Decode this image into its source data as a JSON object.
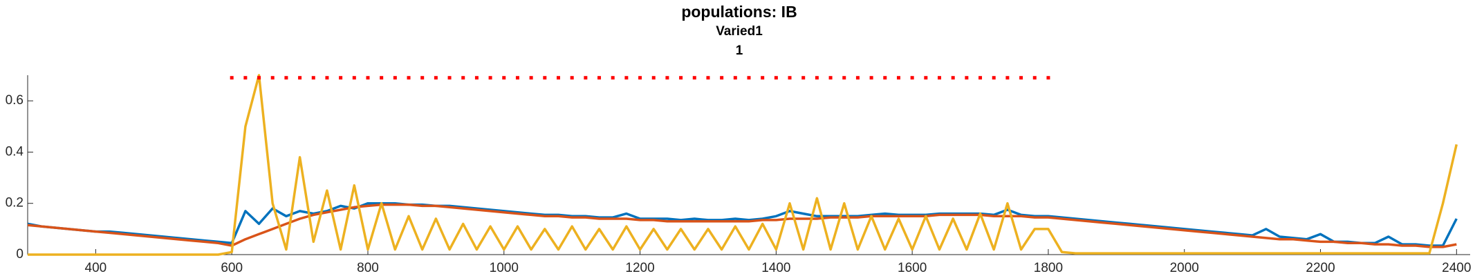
{
  "chart_data": {
    "type": "line",
    "title": "populations: IB",
    "subtitle": "Varied1",
    "subtitle2": "1",
    "x": [
      300,
      320,
      340,
      360,
      380,
      400,
      420,
      440,
      460,
      480,
      500,
      520,
      540,
      560,
      580,
      600,
      620,
      640,
      660,
      680,
      700,
      720,
      740,
      760,
      780,
      800,
      820,
      840,
      860,
      880,
      900,
      920,
      940,
      960,
      980,
      1000,
      1020,
      1040,
      1060,
      1080,
      1100,
      1120,
      1140,
      1160,
      1180,
      1200,
      1220,
      1240,
      1260,
      1280,
      1300,
      1320,
      1340,
      1360,
      1380,
      1400,
      1420,
      1440,
      1460,
      1480,
      1500,
      1520,
      1540,
      1560,
      1580,
      1600,
      1620,
      1640,
      1660,
      1680,
      1700,
      1720,
      1740,
      1760,
      1780,
      1800,
      1820,
      1840,
      1860,
      1880,
      1900,
      1920,
      1940,
      1960,
      1980,
      2000,
      2020,
      2040,
      2060,
      2080,
      2100,
      2120,
      2140,
      2160,
      2180,
      2200,
      2220,
      2240,
      2260,
      2280,
      2300,
      2320,
      2340,
      2360,
      2380,
      2400
    ],
    "series": [
      {
        "color": "#0072bd",
        "values": [
          0.12,
          0.11,
          0.105,
          0.1,
          0.095,
          0.09,
          0.09,
          0.085,
          0.08,
          0.075,
          0.07,
          0.065,
          0.06,
          0.055,
          0.05,
          0.045,
          0.17,
          0.12,
          0.18,
          0.15,
          0.17,
          0.16,
          0.17,
          0.19,
          0.18,
          0.2,
          0.2,
          0.2,
          0.195,
          0.195,
          0.19,
          0.19,
          0.185,
          0.18,
          0.175,
          0.17,
          0.165,
          0.16,
          0.155,
          0.155,
          0.15,
          0.15,
          0.145,
          0.145,
          0.16,
          0.14,
          0.14,
          0.14,
          0.135,
          0.14,
          0.135,
          0.135,
          0.14,
          0.135,
          0.14,
          0.15,
          0.17,
          0.16,
          0.15,
          0.15,
          0.15,
          0.15,
          0.155,
          0.16,
          0.155,
          0.155,
          0.155,
          0.16,
          0.16,
          0.16,
          0.16,
          0.155,
          0.175,
          0.155,
          0.15,
          0.15,
          0.145,
          0.14,
          0.135,
          0.13,
          0.125,
          0.12,
          0.115,
          0.11,
          0.105,
          0.1,
          0.095,
          0.09,
          0.085,
          0.08,
          0.075,
          0.1,
          0.07,
          0.065,
          0.06,
          0.08,
          0.05,
          0.05,
          0.045,
          0.045,
          0.07,
          0.04,
          0.04,
          0.035,
          0.035,
          0.14
        ]
      },
      {
        "color": "#d95319",
        "values": [
          0.115,
          0.11,
          0.105,
          0.1,
          0.095,
          0.09,
          0.085,
          0.08,
          0.075,
          0.07,
          0.065,
          0.06,
          0.055,
          0.05,
          0.045,
          0.035,
          0.06,
          0.08,
          0.1,
          0.12,
          0.14,
          0.155,
          0.165,
          0.175,
          0.185,
          0.19,
          0.195,
          0.195,
          0.195,
          0.19,
          0.19,
          0.185,
          0.18,
          0.175,
          0.17,
          0.165,
          0.16,
          0.155,
          0.15,
          0.15,
          0.145,
          0.145,
          0.14,
          0.14,
          0.14,
          0.135,
          0.135,
          0.13,
          0.13,
          0.13,
          0.13,
          0.13,
          0.13,
          0.13,
          0.135,
          0.135,
          0.14,
          0.14,
          0.14,
          0.145,
          0.145,
          0.145,
          0.15,
          0.15,
          0.15,
          0.15,
          0.15,
          0.155,
          0.155,
          0.155,
          0.155,
          0.15,
          0.15,
          0.15,
          0.145,
          0.145,
          0.14,
          0.135,
          0.13,
          0.125,
          0.12,
          0.115,
          0.11,
          0.105,
          0.1,
          0.095,
          0.09,
          0.085,
          0.08,
          0.075,
          0.07,
          0.065,
          0.06,
          0.06,
          0.055,
          0.05,
          0.05,
          0.045,
          0.045,
          0.04,
          0.04,
          0.035,
          0.035,
          0.03,
          0.03,
          0.04
        ]
      },
      {
        "color": "#edb120",
        "values": [
          0,
          0,
          0,
          0,
          0,
          0,
          0,
          0,
          0,
          0,
          0,
          0,
          0,
          0,
          0,
          0.01,
          0.5,
          0.7,
          0.2,
          0.02,
          0.38,
          0.05,
          0.25,
          0.02,
          0.27,
          0.02,
          0.2,
          0.02,
          0.15,
          0.02,
          0.14,
          0.02,
          0.12,
          0.02,
          0.11,
          0.02,
          0.11,
          0.02,
          0.1,
          0.02,
          0.11,
          0.02,
          0.1,
          0.02,
          0.11,
          0.02,
          0.1,
          0.02,
          0.1,
          0.02,
          0.1,
          0.02,
          0.11,
          0.02,
          0.12,
          0.02,
          0.2,
          0.02,
          0.22,
          0.02,
          0.2,
          0.02,
          0.15,
          0.02,
          0.14,
          0.02,
          0.15,
          0.02,
          0.14,
          0.02,
          0.16,
          0.02,
          0.2,
          0.02,
          0.1,
          0.1,
          0.01,
          0.005,
          0.005,
          0.005,
          0.005,
          0.005,
          0.005,
          0.005,
          0.005,
          0.005,
          0.005,
          0.005,
          0.005,
          0.005,
          0.005,
          0.005,
          0.005,
          0.005,
          0.005,
          0.005,
          0.005,
          0.005,
          0.005,
          0.005,
          0.005,
          0.005,
          0.005,
          0.005,
          0.2,
          0.43
        ]
      },
      {
        "color": "#ff0000",
        "marker": "dot",
        "values": [
          null,
          null,
          null,
          null,
          null,
          null,
          null,
          null,
          null,
          null,
          null,
          null,
          null,
          null,
          null,
          0.69,
          0.69,
          0.69,
          0.69,
          0.69,
          0.69,
          0.69,
          0.69,
          0.69,
          0.69,
          0.69,
          0.69,
          0.69,
          0.69,
          0.69,
          0.69,
          0.69,
          0.69,
          0.69,
          0.69,
          0.69,
          0.69,
          0.69,
          0.69,
          0.69,
          0.69,
          0.69,
          0.69,
          0.69,
          0.69,
          0.69,
          0.69,
          0.69,
          0.69,
          0.69,
          0.69,
          0.69,
          0.69,
          0.69,
          0.69,
          0.69,
          0.69,
          0.69,
          0.69,
          0.69,
          0.69,
          0.69,
          0.69,
          0.69,
          0.69,
          0.69,
          0.69,
          0.69,
          0.69,
          0.69,
          0.69,
          0.69,
          0.69,
          0.69,
          0.69,
          0.69,
          null,
          null,
          null,
          null,
          null,
          null,
          null,
          null,
          null,
          null,
          null,
          null,
          null,
          null,
          null,
          null,
          null,
          null,
          null,
          null,
          null,
          null,
          null,
          null,
          null,
          null,
          null,
          null,
          null,
          null
        ]
      }
    ],
    "xlim": [
      300,
      2420
    ],
    "ylim": [
      0,
      0.7
    ],
    "xticks": [
      400,
      600,
      800,
      1000,
      1200,
      1400,
      1600,
      1800,
      2000,
      2200,
      2400
    ],
    "yticks": [
      0,
      0.2,
      0.4,
      0.6
    ]
  }
}
